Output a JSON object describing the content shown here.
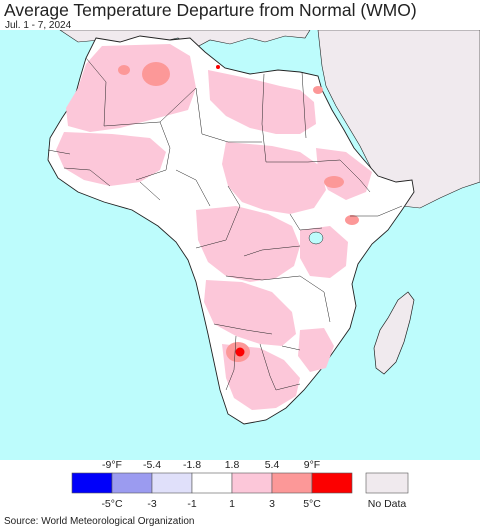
{
  "title": "Average Temperature Departure from Normal (WMO)",
  "subtitle": "Jul. 1 - 7, 2024",
  "source": "Source: World Meteorological Organization",
  "colors": {
    "ocean": "#bdfcfc",
    "land_no_data": "#f0eaee",
    "normal": "#ffffff",
    "warm_1_3": "#fcc7d9",
    "warm_3_5": "#fc9898",
    "warm_5plus": "#fc0000",
    "borders": "#222222"
  },
  "legend": {
    "fahrenheit_labels": [
      "-9°F",
      "-5.4",
      "-1.8",
      "1.8",
      "5.4",
      "9°F"
    ],
    "celsius_labels": [
      "-5°C",
      "-3",
      "-1",
      "1",
      "3",
      "5°C"
    ],
    "bins": [
      {
        "color": "#0000fa"
      },
      {
        "color": "#9b9bf0"
      },
      {
        "color": "#e0e0fa"
      },
      {
        "color": "#ffffff"
      },
      {
        "color": "#fcc7d9"
      },
      {
        "color": "#fc9898"
      },
      {
        "color": "#fc0000"
      }
    ],
    "no_data_label": "No Data",
    "no_data_color": "#f0eaee"
  }
}
